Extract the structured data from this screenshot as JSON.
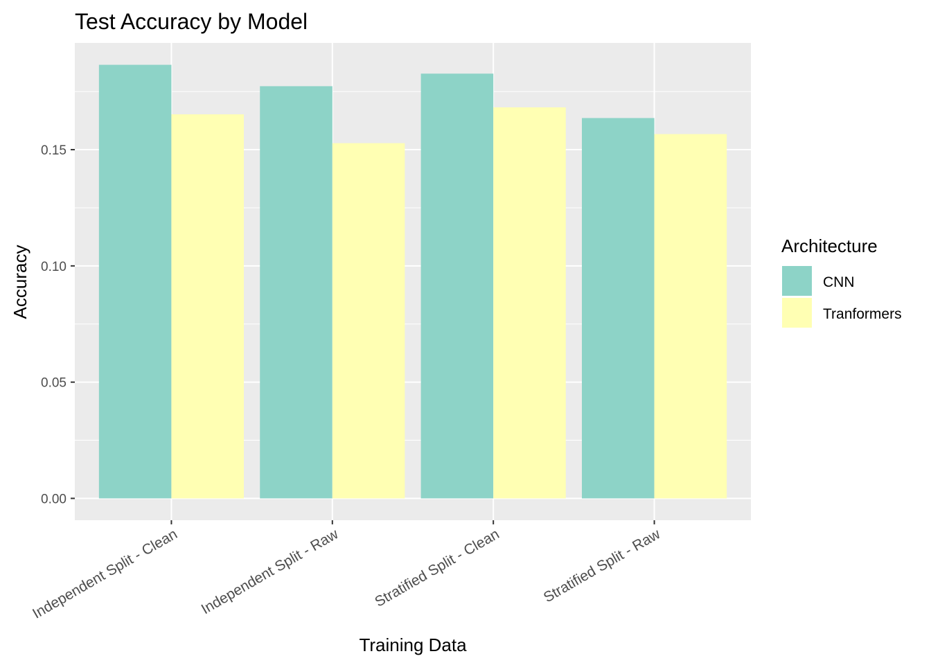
{
  "chart_data": {
    "type": "bar",
    "title": "Test Accuracy by Model",
    "xlabel": "Training Data",
    "ylabel": "Accuracy",
    "categories": [
      "Independent Split - Clean",
      "Independent Split - Raw",
      "Stratified Split - Clean",
      "Stratified Split - Raw"
    ],
    "series": [
      {
        "name": "CNN",
        "values": [
          0.1865,
          0.1773,
          0.1827,
          0.1636
        ],
        "color": "#8DD3C7"
      },
      {
        "name": "Tranformers",
        "values": [
          0.1652,
          0.1528,
          0.1682,
          0.1567
        ],
        "color": "#FFFFB3"
      }
    ],
    "ylim": [
      -0.0094,
      0.1959
    ],
    "yticks": [
      0.0,
      0.05,
      0.1,
      0.15
    ],
    "ytick_labels": [
      "0.00",
      "0.05",
      "0.10",
      "0.15"
    ],
    "grid": true,
    "legend": {
      "title": "Architecture",
      "position": "right"
    }
  }
}
